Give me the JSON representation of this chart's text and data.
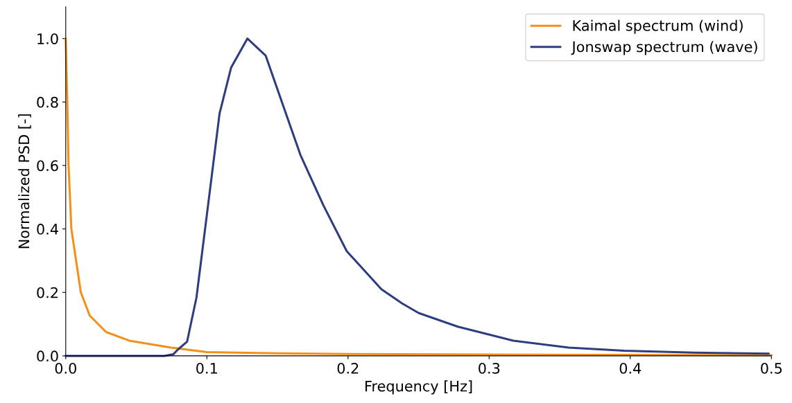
{
  "chart_data": {
    "type": "line",
    "xlabel": "Frequency [Hz]",
    "ylabel": "Normalized PSD [-]",
    "xlim": [
      0,
      0.5
    ],
    "ylim": [
      0,
      1.1
    ],
    "xticks": [
      {
        "value": 0,
        "label": "0.0"
      },
      0.1,
      0.2,
      0.3,
      0.4,
      0.5
    ],
    "yticks": [
      {
        "value": 0,
        "label": "0.0"
      },
      0.2,
      0.4,
      0.6,
      0.8,
      {
        "value": 1,
        "label": "1.0"
      }
    ],
    "grid": false,
    "legend": "top right",
    "marker": "none",
    "line_style": "solid",
    "series": [
      {
        "name": "Kaimal spectrum (wind)",
        "color": "#f39019",
        "x": [
          0,
          0.0011,
          0.002,
          0.004,
          0.0107,
          0.017,
          0.0286,
          0.045,
          0.0746,
          0.1,
          0.15,
          0.2,
          0.3,
          0.4,
          0.5
        ],
        "values": [
          1.0,
          0.8,
          0.6,
          0.4,
          0.2,
          0.127,
          0.075,
          0.048,
          0.026,
          0.012,
          0.008,
          0.006,
          0.004,
          0.003,
          0.002
        ]
      },
      {
        "name": "Jonswap spectrum (wave)",
        "color": "#2c3e7f",
        "x": [
          0,
          0.07,
          0.0762,
          0.0795,
          0.086,
          0.0926,
          0.1008,
          0.109,
          0.1172,
          0.1287,
          0.1417,
          0.1549,
          0.1663,
          0.1827,
          0.1991,
          0.2237,
          0.2384,
          0.25,
          0.2778,
          0.3171,
          0.3564,
          0.3958,
          0.445,
          0.498
        ],
        "values": [
          0,
          0,
          0.005,
          0.02,
          0.045,
          0.183,
          0.473,
          0.764,
          0.909,
          1.0,
          0.946,
          0.778,
          0.633,
          0.473,
          0.33,
          0.21,
          0.165,
          0.135,
          0.092,
          0.048,
          0.026,
          0.016,
          0.01,
          0.007
        ]
      }
    ]
  }
}
